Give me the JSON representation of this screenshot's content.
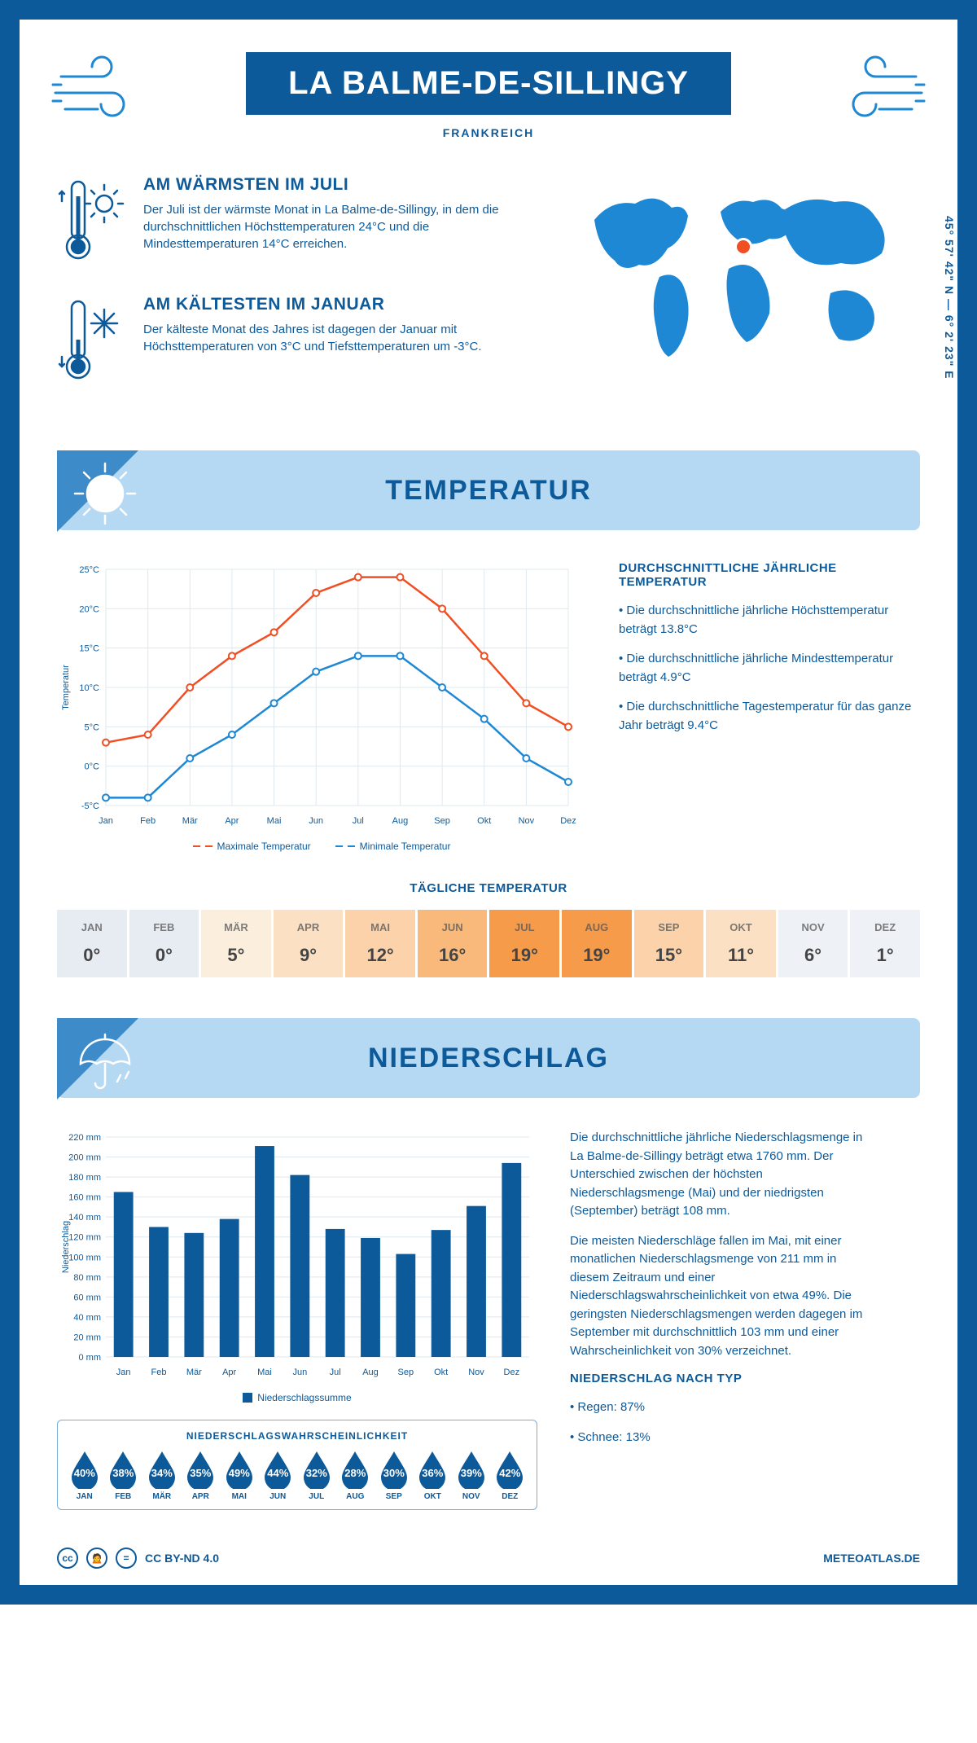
{
  "header": {
    "title": "LA BALME-DE-SILLINGY",
    "country": "FRANKREICH"
  },
  "coords": "45° 57' 42\" N — 6° 2' 23\" E",
  "warmest": {
    "title": "AM WÄRMSTEN IM JULI",
    "text": "Der Juli ist der wärmste Monat in La Balme-de-Sillingy, in dem die durchschnittlichen Höchsttemperaturen 24°C und die Mindesttemperaturen 14°C erreichen."
  },
  "coldest": {
    "title": "AM KÄLTESTEN IM JANUAR",
    "text": "Der kälteste Monat des Jahres ist dagegen der Januar mit Höchsttemperaturen von 3°C und Tiefsttemperaturen um -3°C."
  },
  "temp_section": {
    "title": "TEMPERATUR"
  },
  "temp_chart": {
    "months": [
      "Jan",
      "Feb",
      "Mär",
      "Apr",
      "Mai",
      "Jun",
      "Jul",
      "Aug",
      "Sep",
      "Okt",
      "Nov",
      "Dez"
    ],
    "max": [
      3,
      4,
      10,
      14,
      17,
      22,
      24,
      24,
      20,
      14,
      8,
      5
    ],
    "min": [
      -4,
      -4,
      1,
      4,
      8,
      12,
      14,
      14,
      10,
      6,
      1,
      -2
    ],
    "ylabel": "Temperatur",
    "ymin": -5,
    "ymax": 25,
    "ystep": 5,
    "max_color": "#f04e23",
    "min_color": "#1e88d4",
    "grid_color": "#dfe8ee",
    "legend_max": "Maximale Temperatur",
    "legend_min": "Minimale Temperatur"
  },
  "temp_info": {
    "title": "DURCHSCHNITTLICHE JÄHRLICHE TEMPERATUR",
    "p1": "• Die durchschnittliche jährliche Höchsttemperatur beträgt 13.8°C",
    "p2": "• Die durchschnittliche jährliche Mindesttemperatur beträgt 4.9°C",
    "p3": "• Die durchschnittliche Tagestemperatur für das ganze Jahr beträgt 9.4°C"
  },
  "daily": {
    "title": "TÄGLICHE TEMPERATUR",
    "months": [
      "JAN",
      "FEB",
      "MÄR",
      "APR",
      "MAI",
      "JUN",
      "JUL",
      "AUG",
      "SEP",
      "OKT",
      "NOV",
      "DEZ"
    ],
    "values": [
      "0°",
      "0°",
      "5°",
      "9°",
      "12°",
      "16°",
      "19°",
      "19°",
      "15°",
      "11°",
      "6°",
      "1°"
    ],
    "colors": [
      "#e6ecf2",
      "#e6ecf2",
      "#fbeedd",
      "#fbe0c3",
      "#fbd2a9",
      "#f9b97b",
      "#f59b49",
      "#f59b49",
      "#fbd2a9",
      "#fbe0c3",
      "#eef2f6",
      "#eef2f6"
    ]
  },
  "precip_section": {
    "title": "NIEDERSCHLAG"
  },
  "precip_chart": {
    "months": [
      "Jan",
      "Feb",
      "Mär",
      "Apr",
      "Mai",
      "Jun",
      "Jul",
      "Aug",
      "Sep",
      "Okt",
      "Nov",
      "Dez"
    ],
    "values": [
      165,
      130,
      124,
      138,
      211,
      182,
      128,
      119,
      103,
      127,
      151,
      194
    ],
    "ylabel": "Niederschlag",
    "ymax": 220,
    "ystep": 20,
    "bar_color": "#0d5a9a",
    "grid_color": "#dfe8ee",
    "legend": "Niederschlagssumme"
  },
  "precip_text": {
    "p1": "Die durchschnittliche jährliche Niederschlagsmenge in La Balme-de-Sillingy beträgt etwa 1760 mm. Der Unterschied zwischen der höchsten Niederschlagsmenge (Mai) und der niedrigsten (September) beträgt 108 mm.",
    "p2": "Die meisten Niederschläge fallen im Mai, mit einer monatlichen Niederschlagsmenge von 211 mm in diesem Zeitraum und einer Niederschlagswahrscheinlichkeit von etwa 49%. Die geringsten Niederschlagsmengen werden dagegen im September mit durchschnittlich 103 mm und einer Wahrscheinlichkeit von 30% verzeichnet.",
    "h": "NIEDERSCHLAG NACH TYP",
    "p3": "• Regen: 87%",
    "p4": "• Schnee: 13%"
  },
  "prob": {
    "title": "NIEDERSCHLAGSWAHRSCHEINLICHKEIT",
    "months": [
      "JAN",
      "FEB",
      "MÄR",
      "APR",
      "MAI",
      "JUN",
      "JUL",
      "AUG",
      "SEP",
      "OKT",
      "NOV",
      "DEZ"
    ],
    "values": [
      "40%",
      "38%",
      "34%",
      "35%",
      "49%",
      "44%",
      "32%",
      "28%",
      "30%",
      "36%",
      "39%",
      "42%"
    ],
    "drop_color": "#0d5a9a"
  },
  "footer": {
    "license": "CC BY-ND 4.0",
    "site": "METEOATLAS.DE"
  }
}
